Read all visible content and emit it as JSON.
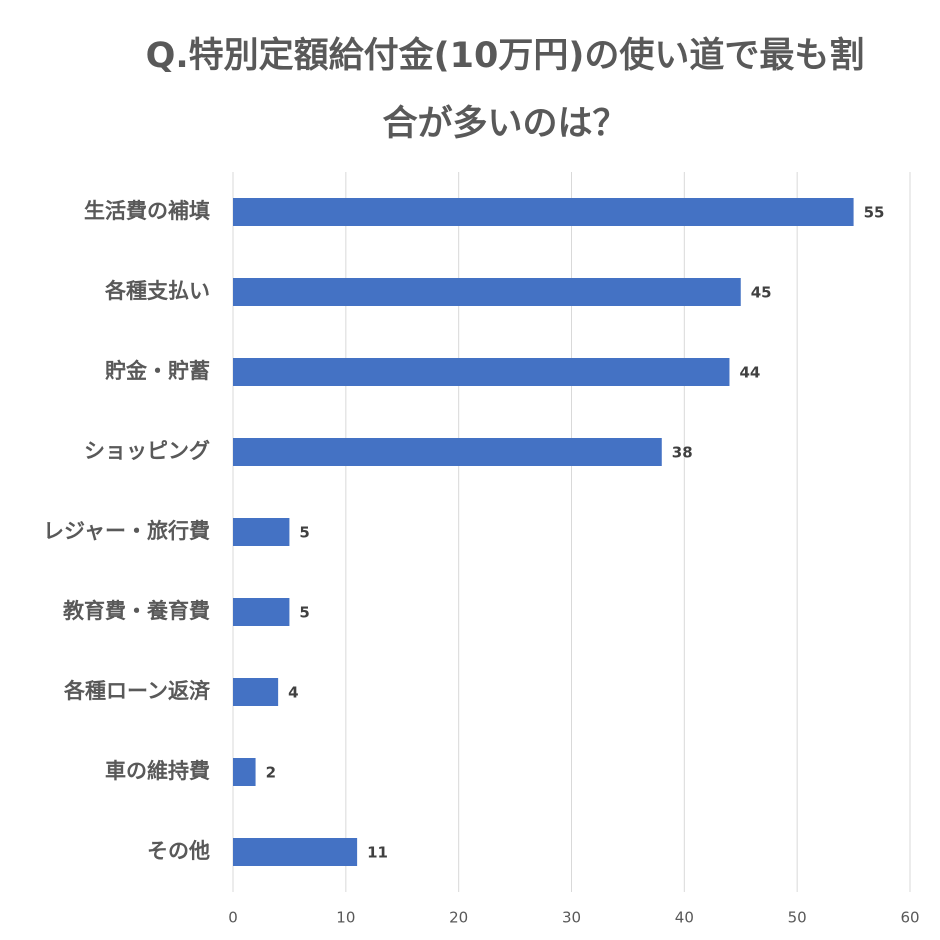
{
  "chart_data": {
    "type": "hbar",
    "title": "Q.特別定額給付金(10万円)の使い道で最も割合が多いのは？",
    "categories": [
      "生活費の補填",
      "各種支払い",
      "貯金・貯蓄",
      "ショッピング",
      "レジャー・旅行費",
      "教育費・養育費",
      "各種ローン返済",
      "車の維持費",
      "その他"
    ],
    "values": [
      55,
      45,
      44,
      38,
      5,
      5,
      4,
      2,
      11
    ],
    "color": "#4472c4",
    "xlim": [
      0,
      60
    ],
    "xticks": [
      0,
      10,
      20,
      30,
      40,
      50,
      60
    ],
    "grid": true
  }
}
